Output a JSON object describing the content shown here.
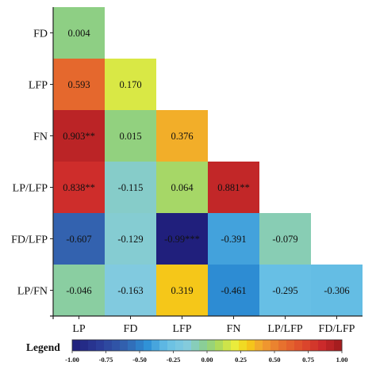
{
  "chart_data": {
    "type": "heatmap",
    "title": "",
    "row_labels": [
      "FD",
      "LFP",
      "FN",
      "LP/LFP",
      "FD/LFP",
      "LP/FN"
    ],
    "col_labels": [
      "LP",
      "FD",
      "LFP",
      "FN",
      "LP/LFP",
      "FD/LFP"
    ],
    "cells": [
      {
        "row": "FD",
        "col": "LP",
        "value": 0.004,
        "label": "0.004"
      },
      {
        "row": "LFP",
        "col": "LP",
        "value": 0.593,
        "label": "0.593"
      },
      {
        "row": "LFP",
        "col": "FD",
        "value": 0.17,
        "label": "0.170"
      },
      {
        "row": "FN",
        "col": "LP",
        "value": 0.903,
        "label": "0.903**"
      },
      {
        "row": "FN",
        "col": "FD",
        "value": 0.015,
        "label": "0.015"
      },
      {
        "row": "FN",
        "col": "LFP",
        "value": 0.376,
        "label": "0.376"
      },
      {
        "row": "LP/LFP",
        "col": "LP",
        "value": 0.838,
        "label": "0.838**"
      },
      {
        "row": "LP/LFP",
        "col": "FD",
        "value": -0.115,
        "label": "-0.115"
      },
      {
        "row": "LP/LFP",
        "col": "LFP",
        "value": 0.064,
        "label": "0.064"
      },
      {
        "row": "LP/LFP",
        "col": "FN",
        "value": 0.881,
        "label": "0.881**"
      },
      {
        "row": "FD/LFP",
        "col": "LP",
        "value": -0.607,
        "label": "-0.607"
      },
      {
        "row": "FD/LFP",
        "col": "FD",
        "value": -0.129,
        "label": "-0.129"
      },
      {
        "row": "FD/LFP",
        "col": "LFP",
        "value": -0.99,
        "label": "-0.99***"
      },
      {
        "row": "FD/LFP",
        "col": "FN",
        "value": -0.391,
        "label": "-0.391"
      },
      {
        "row": "FD/LFP",
        "col": "LP/LFP",
        "value": -0.079,
        "label": "-0.079"
      },
      {
        "row": "LP/FN",
        "col": "LP",
        "value": -0.046,
        "label": "-0.046"
      },
      {
        "row": "LP/FN",
        "col": "FD",
        "value": -0.163,
        "label": "-0.163"
      },
      {
        "row": "LP/FN",
        "col": "LFP",
        "value": 0.319,
        "label": "0.319"
      },
      {
        "row": "LP/FN",
        "col": "FN",
        "value": -0.461,
        "label": "-0.461"
      },
      {
        "row": "LP/FN",
        "col": "LP/LFP",
        "value": -0.295,
        "label": "-0.295"
      },
      {
        "row": "LP/FN",
        "col": "FD/LFP",
        "value": -0.306,
        "label": "-0.306"
      }
    ],
    "legend": {
      "title": "Legend",
      "range": [
        -1.0,
        1.0
      ],
      "ticks": [
        "-1.00",
        "-0.75",
        "-0.50",
        "-0.25",
        "0.00",
        "0.25",
        "0.50",
        "0.75",
        "1.00"
      ],
      "tick_values": [
        -1.0,
        -0.75,
        -0.5,
        -0.25,
        0.0,
        0.25,
        0.5,
        0.75,
        1.0
      ],
      "placement": "bottom"
    },
    "colormap": [
      [
        -1.0,
        "#1f1d7a"
      ],
      [
        -0.8,
        "#2b3c98"
      ],
      [
        -0.6,
        "#3363b0"
      ],
      [
        -0.45,
        "#2d8fd6"
      ],
      [
        -0.3,
        "#66bfe5"
      ],
      [
        -0.15,
        "#84cbde"
      ],
      [
        0.0,
        "#8ccf86"
      ],
      [
        0.1,
        "#b4db55"
      ],
      [
        0.2,
        "#e9ee3e"
      ],
      [
        0.3,
        "#f6cf14"
      ],
      [
        0.4,
        "#f1a330"
      ],
      [
        0.55,
        "#e8732e"
      ],
      [
        0.7,
        "#df4d2c"
      ],
      [
        0.85,
        "#cc2a2b"
      ],
      [
        1.0,
        "#9d1a1c"
      ]
    ]
  }
}
